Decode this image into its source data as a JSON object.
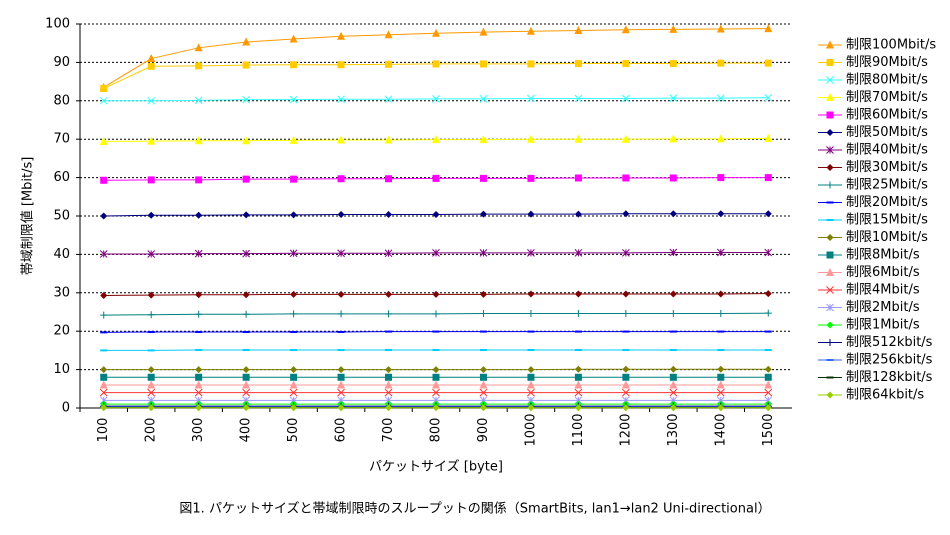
{
  "chart_data": {
    "type": "line",
    "y_label": "帯域制限値 [Mbit/s]",
    "x_label": "パケットサイズ [byte]",
    "caption": "図1. パケットサイズと帯域制限時のスループットの関係（SmartBits, lan1→lan2 Uni-directional）",
    "categories": [
      "100",
      "200",
      "300",
      "400",
      "500",
      "600",
      "700",
      "800",
      "900",
      "1000",
      "1100",
      "1200",
      "1300",
      "1400",
      "1500"
    ],
    "ylim": [
      0,
      100
    ],
    "yticks": [
      0,
      10,
      20,
      30,
      40,
      50,
      60,
      70,
      80,
      90,
      100
    ],
    "grid": true,
    "legend": "right",
    "series": [
      {
        "name": "制限100Mbit/s",
        "color": "#ff9900",
        "marker": "triangle",
        "values": [
          83.5,
          91,
          93.8,
          95.3,
          96.1,
          96.8,
          97.2,
          97.6,
          97.9,
          98.1,
          98.3,
          98.5,
          98.6,
          98.7,
          98.8
        ]
      },
      {
        "name": "制限90Mbit/s",
        "color": "#ffcc00",
        "marker": "square",
        "values": [
          83.2,
          89,
          89.1,
          89.3,
          89.4,
          89.4,
          89.5,
          89.6,
          89.6,
          89.6,
          89.7,
          89.7,
          89.7,
          89.8,
          89.8
        ]
      },
      {
        "name": "制限80Mbit/s",
        "color": "#33ffff",
        "marker": "x",
        "values": [
          80,
          80,
          80.1,
          80.3,
          80.3,
          80.4,
          80.4,
          80.5,
          80.5,
          80.6,
          80.6,
          80.6,
          80.7,
          80.7,
          80.8
        ]
      },
      {
        "name": "制限70Mbit/s",
        "color": "#ffff00",
        "marker": "triangle",
        "values": [
          69.4,
          69.5,
          69.6,
          69.6,
          69.7,
          69.8,
          69.8,
          69.9,
          69.9,
          70,
          70,
          70,
          70.1,
          70.1,
          70.2
        ]
      },
      {
        "name": "制限60Mbit/s",
        "color": "#ff00ff",
        "marker": "square",
        "values": [
          59.3,
          59.4,
          59.4,
          59.6,
          59.6,
          59.7,
          59.7,
          59.8,
          59.8,
          59.8,
          59.9,
          59.9,
          59.9,
          60,
          60
        ]
      },
      {
        "name": "制限50Mbit/s",
        "color": "#000080",
        "marker": "diamond",
        "values": [
          50,
          50.2,
          50.2,
          50.3,
          50.3,
          50.4,
          50.4,
          50.4,
          50.5,
          50.5,
          50.5,
          50.6,
          50.6,
          50.6,
          50.6
        ]
      },
      {
        "name": "制限40Mbit/s",
        "color": "#800080",
        "marker": "star",
        "values": [
          40.1,
          40.1,
          40.2,
          40.2,
          40.3,
          40.3,
          40.3,
          40.4,
          40.4,
          40.4,
          40.4,
          40.4,
          40.5,
          40.5,
          40.5
        ]
      },
      {
        "name": "制限30Mbit/s",
        "color": "#800000",
        "marker": "diamond",
        "values": [
          29.3,
          29.4,
          29.5,
          29.5,
          29.6,
          29.6,
          29.6,
          29.6,
          29.6,
          29.7,
          29.7,
          29.7,
          29.7,
          29.7,
          29.8
        ]
      },
      {
        "name": "制限25Mbit/s",
        "color": "#008080",
        "marker": "plus",
        "values": [
          24.2,
          24.3,
          24.4,
          24.4,
          24.5,
          24.5,
          24.5,
          24.5,
          24.6,
          24.6,
          24.6,
          24.6,
          24.6,
          24.6,
          24.7
        ]
      },
      {
        "name": "制限20Mbit/s",
        "color": "#0000ff",
        "marker": "dash",
        "values": [
          19.7,
          19.8,
          19.8,
          19.8,
          19.8,
          19.8,
          19.9,
          19.9,
          19.9,
          19.9,
          19.9,
          19.9,
          19.9,
          19.9,
          19.9
        ]
      },
      {
        "name": "制限15Mbit/s",
        "color": "#00ccff",
        "marker": "dash",
        "values": [
          15,
          15,
          15.1,
          15.1,
          15.1,
          15.1,
          15.1,
          15.1,
          15.1,
          15.1,
          15.1,
          15.1,
          15.1,
          15.1,
          15.1
        ]
      },
      {
        "name": "制限10Mbit/s",
        "color": "#808000",
        "marker": "diamond",
        "values": [
          10,
          10,
          10,
          10,
          10,
          10,
          10,
          10,
          10,
          10,
          10.1,
          10.1,
          10.1,
          10.1,
          10.1
        ]
      },
      {
        "name": "制限8Mbit/s",
        "color": "#008080",
        "marker": "square",
        "values": [
          8,
          8,
          8,
          8,
          8,
          8,
          8,
          8,
          8,
          8,
          8,
          8,
          8,
          8,
          8
        ]
      },
      {
        "name": "制限6Mbit/s",
        "color": "#ff9999",
        "marker": "triangle",
        "values": [
          6,
          6,
          6,
          6,
          6,
          6,
          6,
          6,
          6,
          6,
          6,
          6,
          6,
          6,
          6
        ]
      },
      {
        "name": "制限4Mbit/s",
        "color": "#ff3333",
        "marker": "x",
        "values": [
          4,
          4,
          4,
          4,
          4,
          4,
          4,
          4,
          4,
          4,
          4,
          4,
          4,
          4,
          4
        ]
      },
      {
        "name": "制限2Mbit/s",
        "color": "#9999ff",
        "marker": "star",
        "values": [
          2,
          2,
          2,
          2,
          2,
          2,
          2,
          2,
          2,
          2,
          2,
          2,
          2,
          2,
          2
        ]
      },
      {
        "name": "制限1Mbit/s",
        "color": "#00ff00",
        "marker": "diamond",
        "values": [
          1,
          1,
          1,
          1,
          1,
          1,
          1,
          1,
          1,
          1,
          1,
          1,
          1,
          1,
          1
        ]
      },
      {
        "name": "制限512kbit/s",
        "color": "#000080",
        "marker": "plus",
        "values": [
          0.5,
          0.5,
          0.5,
          0.5,
          0.5,
          0.5,
          0.5,
          0.5,
          0.5,
          0.5,
          0.5,
          0.5,
          0.5,
          0.5,
          0.5
        ]
      },
      {
        "name": "制限256kbit/s",
        "color": "#3366ff",
        "marker": "dash",
        "values": [
          0.25,
          0.25,
          0.25,
          0.25,
          0.25,
          0.25,
          0.25,
          0.25,
          0.25,
          0.25,
          0.25,
          0.25,
          0.25,
          0.25,
          0.25
        ]
      },
      {
        "name": "制限128kbit/s",
        "color": "#003300",
        "marker": "dash",
        "values": [
          0.13,
          0.13,
          0.13,
          0.13,
          0.13,
          0.13,
          0.13,
          0.13,
          0.13,
          0.13,
          0.13,
          0.13,
          0.13,
          0.13,
          0.13
        ]
      },
      {
        "name": "制限64kbit/s",
        "color": "#99cc00",
        "marker": "diamond",
        "values": [
          0.06,
          0.06,
          0.06,
          0.06,
          0.06,
          0.06,
          0.06,
          0.06,
          0.06,
          0.06,
          0.06,
          0.06,
          0.06,
          0.06,
          0.06
        ]
      }
    ]
  }
}
